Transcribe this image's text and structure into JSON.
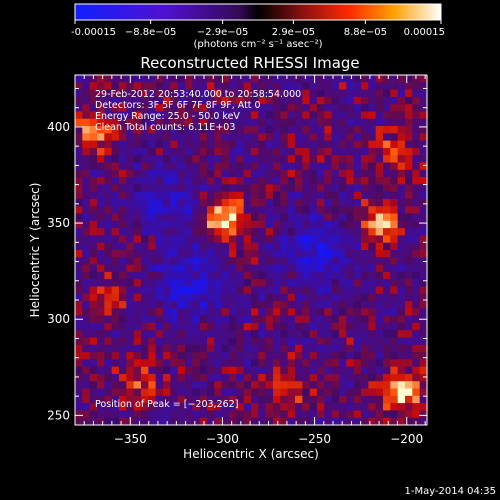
{
  "colorbar": {
    "tick_labels": [
      "-0.00015",
      "−8.8e−05",
      "−2.9e−05",
      "2.9e−05",
      "8.8e−05",
      "0.00015"
    ],
    "units": "(photons cm⁻² s⁻¹ asec⁻²)",
    "range": [
      -0.00015,
      0.00015
    ]
  },
  "annotations": {
    "time_range": "29-Feb-2012 20:53:40.000 to 20:58:54.000",
    "detectors": "Detectors: 3F 5F 6F 7F 8F 9F, Att 0",
    "energy": "Energy Range: 25.0 - 50.0 keV",
    "clean": "Clean     Total counts: 6.11E+03",
    "peak": "Position of Peak = [−203,262]"
  },
  "footer": {
    "date": "1-May-2014 04:35"
  },
  "chart_data": {
    "type": "heatmap",
    "title": "Reconstructed RHESSI Image",
    "xlabel": "Heliocentric X (arcsec)",
    "ylabel": "Heliocentric Y (arcsec)",
    "xlim": [
      -380,
      -189
    ],
    "ylim": [
      245,
      427
    ],
    "x_ticks": [
      -350,
      -300,
      -250,
      -200
    ],
    "y_ticks": [
      250,
      300,
      350,
      400
    ],
    "x_tick_labels": [
      "−350",
      "−300",
      "−250",
      "−200"
    ],
    "y_tick_labels": [
      "250",
      "300",
      "350",
      "400"
    ],
    "features": [
      {
        "x": -299,
        "y": 352,
        "value": 0.00015
      },
      {
        "x": -370,
        "y": 398,
        "value": 0.0001
      },
      {
        "x": -203,
        "y": 262,
        "value": 0.00015
      },
      {
        "x": -215,
        "y": 350,
        "value": 0.00012
      },
      {
        "x": -265,
        "y": 265,
        "value": 8e-05
      },
      {
        "x": -345,
        "y": 268,
        "value": 8e-05
      },
      {
        "x": -362,
        "y": 310,
        "value": 7e-05
      },
      {
        "x": -205,
        "y": 390,
        "value": 8e-05
      },
      {
        "x": -250,
        "y": 335,
        "value": -0.0001
      },
      {
        "x": -330,
        "y": 360,
        "value": -8e-05
      },
      {
        "x": -320,
        "y": 318,
        "value": -0.0001
      }
    ]
  }
}
